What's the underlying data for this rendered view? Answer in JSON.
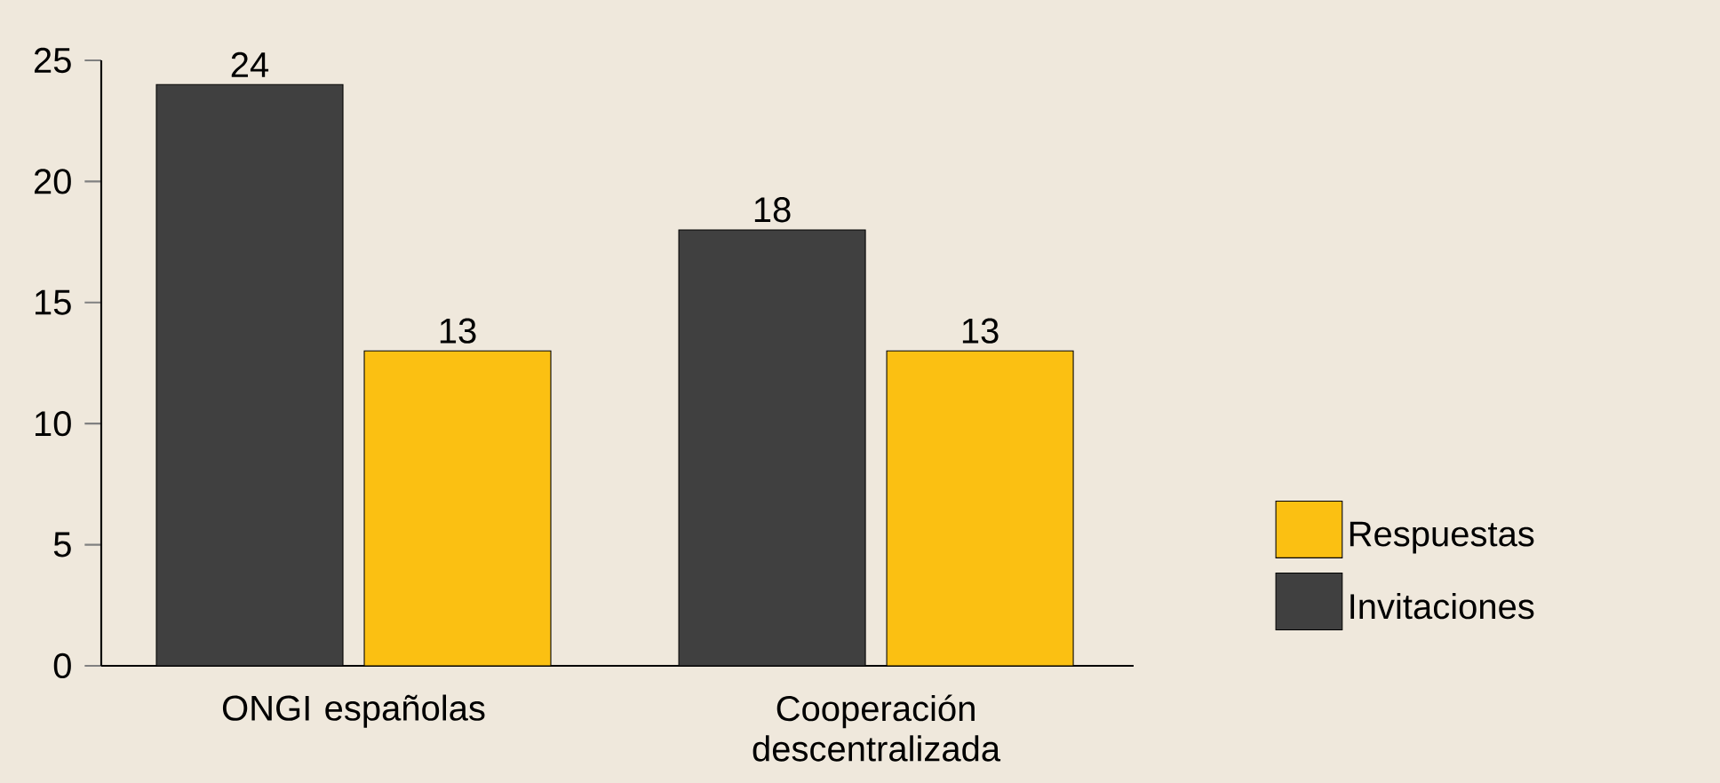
{
  "chart_data": {
    "type": "bar",
    "categories": [
      "ONGI españolas",
      "Cooperación descentralizada"
    ],
    "series": [
      {
        "name": "Invitaciones",
        "color": "#404040",
        "values": [
          24,
          18
        ]
      },
      {
        "name": "Respuestas",
        "color": "#fbc012",
        "values": [
          13,
          13
        ]
      }
    ],
    "ylim": [
      0,
      25
    ],
    "yticks": [
      0,
      5,
      10,
      15,
      20,
      25
    ],
    "data_labels": true,
    "legend": "right",
    "grid": false
  }
}
